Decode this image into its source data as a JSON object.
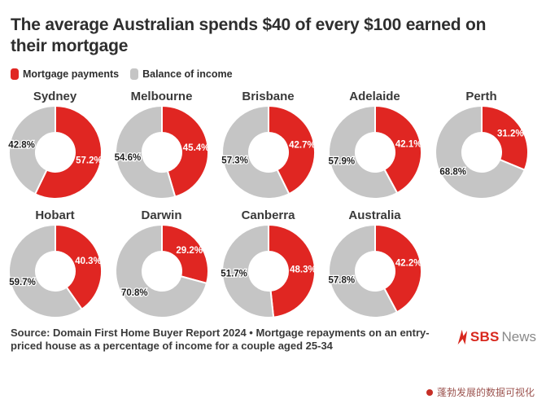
{
  "header": {
    "title": "The average Australian spends $40 of every $100 earned on\ntheir mortgage"
  },
  "legend": [
    {
      "label": "Mortgage payments",
      "color": "#e02622"
    },
    {
      "label": "Balance of income",
      "color": "#c5c5c5"
    }
  ],
  "chart_data": {
    "type": "pie",
    "variant": "donut-small-multiples",
    "title": "The average Australian spends $40 of every $100 earned on their mortgage",
    "legend_position": "top-left",
    "start_angle_deg": 0,
    "direction": "clockwise",
    "units": "%",
    "series_labels": [
      "Mortgage payments",
      "Balance of income"
    ],
    "colors": {
      "mortgage": "#e02622",
      "balance": "#c5c5c5"
    },
    "categories": [
      "Sydney",
      "Melbourne",
      "Brisbane",
      "Adelaide",
      "Perth",
      "Hobart",
      "Darwin",
      "Canberra",
      "Australia"
    ],
    "donuts": [
      {
        "city": "Sydney",
        "mortgage": 57.2,
        "balance": 42.8
      },
      {
        "city": "Melbourne",
        "mortgage": 45.4,
        "balance": 54.6
      },
      {
        "city": "Brisbane",
        "mortgage": 42.7,
        "balance": 57.3
      },
      {
        "city": "Adelaide",
        "mortgage": 42.1,
        "balance": 57.9
      },
      {
        "city": "Perth",
        "mortgage": 31.2,
        "balance": 68.8
      },
      {
        "city": "Hobart",
        "mortgage": 40.3,
        "balance": 59.7
      },
      {
        "city": "Darwin",
        "mortgage": 29.2,
        "balance": 70.8
      },
      {
        "city": "Canberra",
        "mortgage": 48.3,
        "balance": 51.7
      },
      {
        "city": "Australia",
        "mortgage": 42.2,
        "balance": 57.8
      }
    ]
  },
  "footer": {
    "source": "Source: Domain First Home Buyer Report 2024 • Mortgage repayments on an entry-\npriced house as a percentage of income for a couple aged 25-34",
    "brand": {
      "name_primary": "SBS",
      "name_secondary": "News",
      "mark_color": "#d8281e",
      "secondary_color": "#8a8a8a"
    },
    "credit": {
      "text": "蓬勃发展的数据可视化",
      "dot_color": "#c62f26",
      "text_color": "#9c5450"
    }
  },
  "label_colors": {
    "mortgage_label": "#ffffff",
    "balance_label": "#1c1c1c"
  }
}
